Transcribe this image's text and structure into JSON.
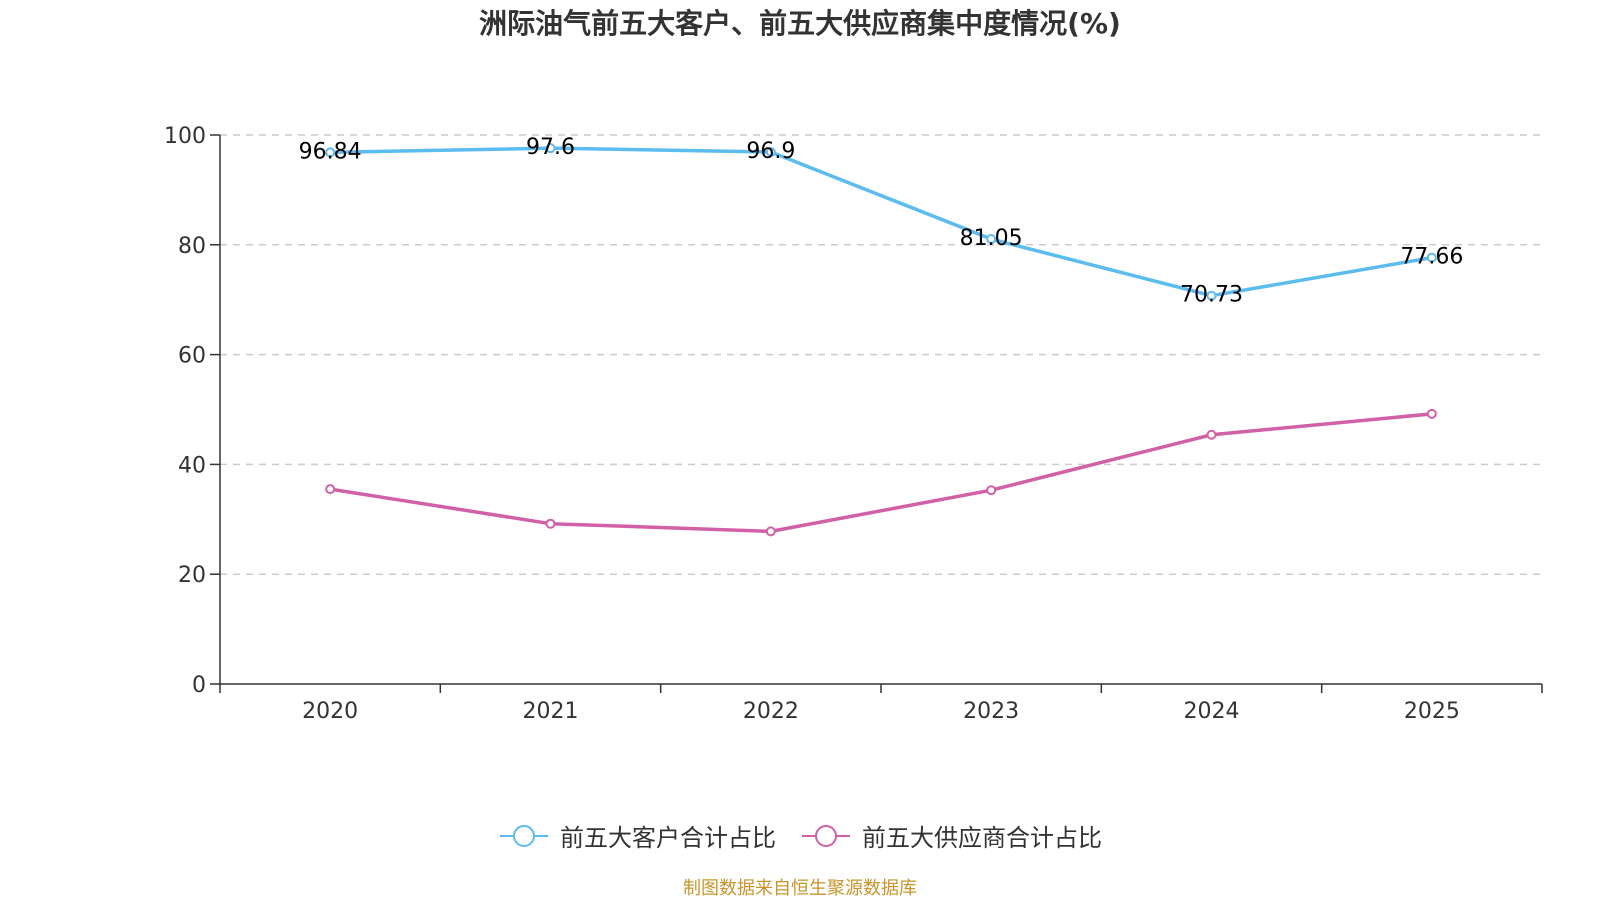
{
  "chart_data": {
    "type": "line",
    "title": "洲际油气前五大客户、前五大供应商集中度情况(%)",
    "categories": [
      "2020",
      "2021",
      "2022",
      "2023",
      "2024",
      "2025"
    ],
    "ylim": [
      0,
      100
    ],
    "yticks": [
      0,
      20,
      40,
      60,
      80,
      100
    ],
    "grid": true,
    "legend_position": "bottom",
    "series": [
      {
        "name": "前五大客户合计占比",
        "color": "#5bbcf0",
        "values": [
          96.84,
          97.6,
          96.9,
          81.05,
          70.73,
          77.66
        ],
        "labels": [
          "96.84",
          "97.6",
          "96.9",
          "81.05",
          "70.73",
          "77.66"
        ]
      },
      {
        "name": "前五大供应商合计占比",
        "color": "#d160a6",
        "values": [
          35.5,
          29.2,
          27.8,
          35.3,
          45.4,
          49.2
        ]
      }
    ],
    "source": "制图数据来自恒生聚源数据库"
  }
}
